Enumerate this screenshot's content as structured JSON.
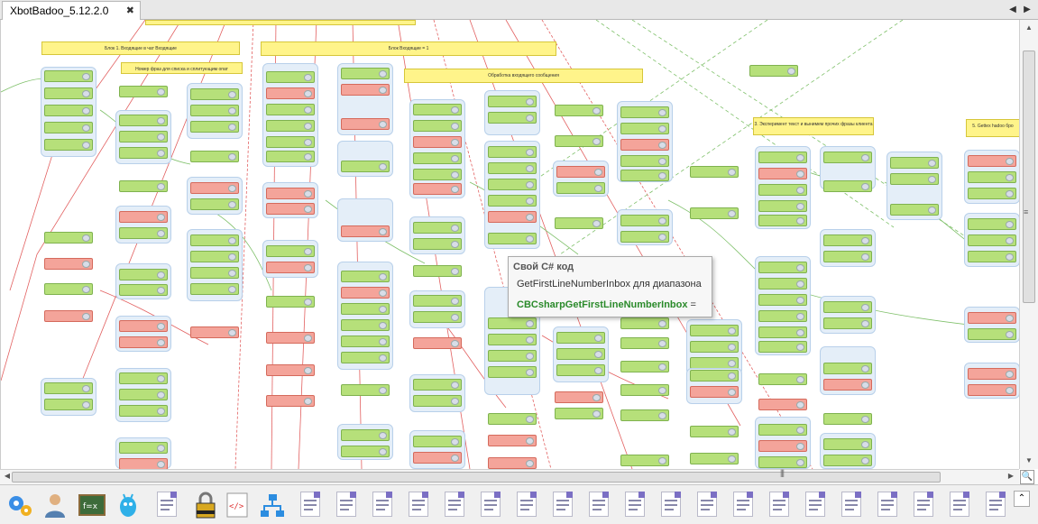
{
  "tab": {
    "title": "XbotBadoo_5.12.2.0",
    "close": "✖"
  },
  "nav": {
    "left": "◀",
    "right": "▶"
  },
  "scroll": {
    "up": "▲",
    "down": "▼",
    "left": "◀",
    "right": "▶",
    "grip_v": "≡",
    "grip_h": "|||"
  },
  "zoom_corner": "🔍",
  "collapse": "⌃",
  "tooltip": {
    "title": "Свой C# код",
    "description": "GetFirstLineNumberInbox для диапазона",
    "code": "CBCsharpGetFirstLineNumberInbox",
    "code_suffix": " ="
  },
  "labels": {
    "l1": "Блок 1. Входящие в чат Входящие",
    "l2": "Номер фраз для списка и сплитующим опат",
    "l3": "Блок Входящие = 1",
    "l4": "Обработка входящего сообщения",
    "l5": "3. Эксперимент текст и вынимем прочих фразы клиента",
    "l6": "5. Gettex hadoo бро"
  },
  "colors": {
    "node_green": "#b6e07a",
    "node_red": "#f4a49a",
    "label_yellow": "#fff48a",
    "group_blue": "#e4eef8"
  },
  "toolbar": {
    "icons": [
      "gears-icon",
      "user-icon",
      "formula-board-icon",
      "robot-icon",
      "document-icon",
      "lock-icon",
      "code-icon",
      "diagram-icon",
      "document-icon"
    ]
  }
}
